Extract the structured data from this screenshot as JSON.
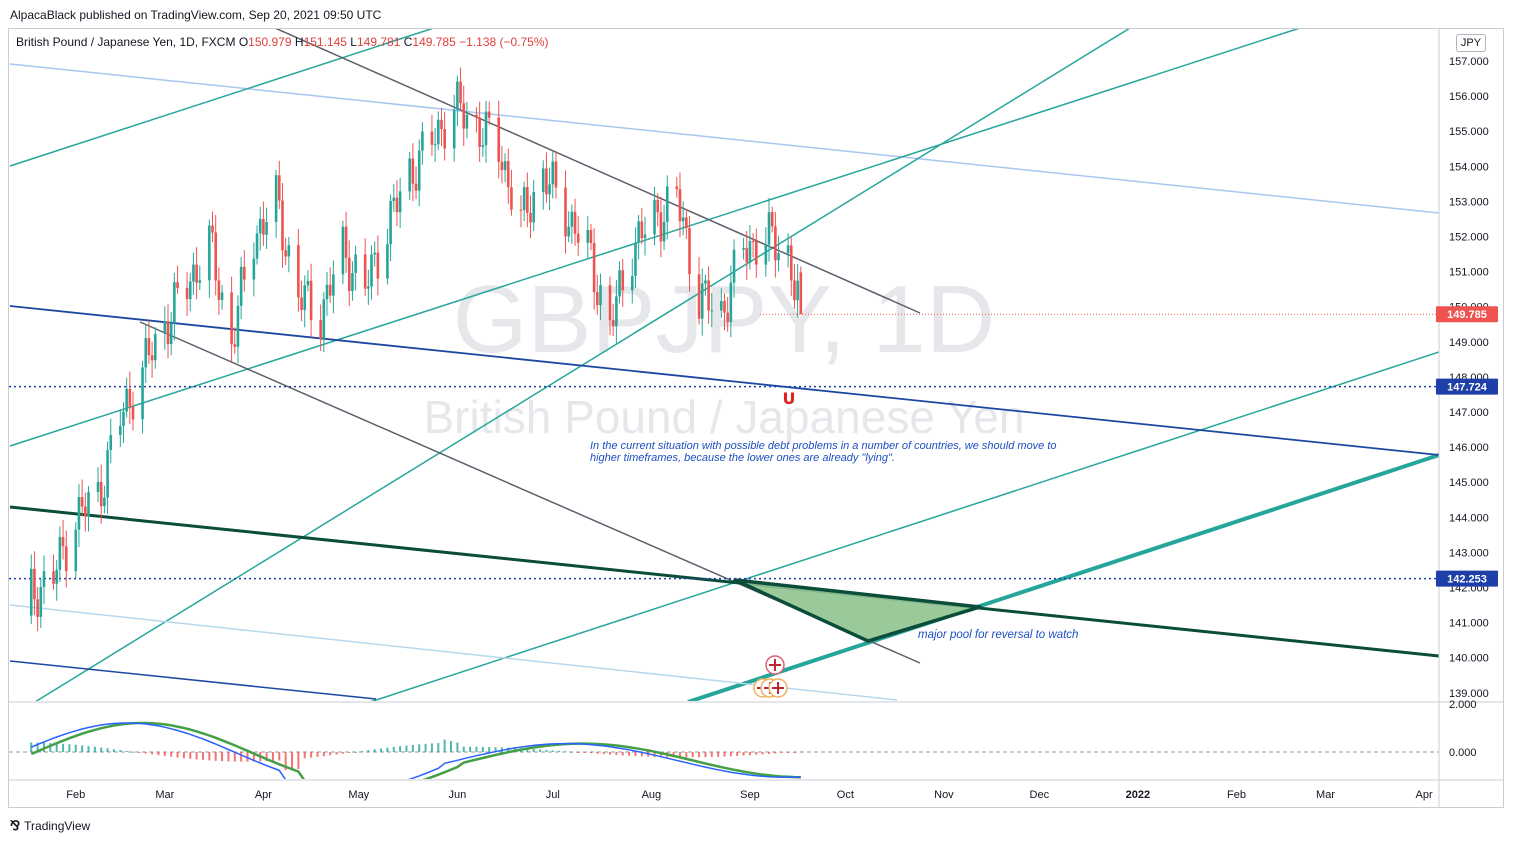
{
  "header": {
    "publisher_line": "AlpacaBlack published on TradingView.com, Sep 20, 2021 09:50 UTC"
  },
  "legend": {
    "symbol": "British Pound / Japanese Yen, 1D, FXCM",
    "open_label": "O",
    "open": "150.979",
    "high_label": "H",
    "high": "151.145",
    "low_label": "L",
    "low": "149.781",
    "close_label": "C",
    "close": "149.785",
    "change": "−1.138 (−0.75%)"
  },
  "currency_button": "JPY",
  "watermark": {
    "ticker": "GBPJPY, 1D",
    "name": "British Pound / Japanese Yen"
  },
  "annotations": {
    "debt_note": "In the current situation with possible debt problems in a number of countries, we should move to higher timeframes, because the lower ones are already \"lying\".",
    "pool_note": "major pool for reversal to watch"
  },
  "price_badges": {
    "last": "149.785",
    "level_1": "147.724",
    "level_2": "142.253"
  },
  "colors": {
    "up": "#26a69a",
    "down": "#ef5350",
    "teal_line": "#26a69a",
    "gray_line": "#5d606b",
    "light_blue_line": "#a8c6f0",
    "navy_line": "#1b47a0",
    "dark_green_line": "#0b4d3a",
    "pool_fill": "#8fc48f",
    "badge_red": "#ef5350",
    "badge_blue": "#1e3fa8",
    "macd": "#2962ff",
    "signal": "#43a047",
    "macd_red": "#b71c1c"
  },
  "footer": {
    "brand": "TradingView"
  },
  "chart_data": {
    "type": "candlestick",
    "title": "British Pound / Japanese Yen, 1D, FXCM",
    "y_axis": {
      "ticks": [
        "157.000",
        "156.000",
        "155.000",
        "154.000",
        "153.000",
        "152.000",
        "151.000",
        "150.000",
        "149.000",
        "148.000",
        "147.000",
        "146.000",
        "145.000",
        "144.000",
        "143.000",
        "142.000",
        "141.000",
        "140.000",
        "139.000"
      ],
      "range": [
        138.8,
        157.8
      ]
    },
    "x_axis": {
      "ticks": [
        "Feb",
        "Mar",
        "Apr",
        "May",
        "Jun",
        "Jul",
        "Aug",
        "Sep",
        "Oct",
        "Nov",
        "Dec",
        "2022",
        "Feb",
        "Mar",
        "Apr"
      ]
    },
    "price_path_anchors": [
      {
        "date": "2021-01-18",
        "close": 141.8
      },
      {
        "date": "2021-01-25",
        "close": 142.3
      },
      {
        "date": "2021-02-01",
        "close": 144.0
      },
      {
        "date": "2021-02-08",
        "close": 144.6
      },
      {
        "date": "2021-02-15",
        "close": 146.8
      },
      {
        "date": "2021-02-22",
        "close": 148.2
      },
      {
        "date": "2021-03-01",
        "close": 149.5
      },
      {
        "date": "2021-03-08",
        "close": 150.6
      },
      {
        "date": "2021-03-15",
        "close": 151.8
      },
      {
        "date": "2021-03-22",
        "close": 149.0
      },
      {
        "date": "2021-03-29",
        "close": 152.0
      },
      {
        "date": "2021-04-05",
        "close": 153.0
      },
      {
        "date": "2021-04-12",
        "close": 150.3
      },
      {
        "date": "2021-04-19",
        "close": 149.8
      },
      {
        "date": "2021-04-26",
        "close": 151.6
      },
      {
        "date": "2021-05-03",
        "close": 150.5
      },
      {
        "date": "2021-05-10",
        "close": 152.3
      },
      {
        "date": "2021-05-17",
        "close": 153.8
      },
      {
        "date": "2021-05-24",
        "close": 154.7
      },
      {
        "date": "2021-05-31",
        "close": 155.7
      },
      {
        "date": "2021-06-07",
        "close": 155.2
      },
      {
        "date": "2021-06-14",
        "close": 154.5
      },
      {
        "date": "2021-06-21",
        "close": 152.4
      },
      {
        "date": "2021-06-28",
        "close": 153.8
      },
      {
        "date": "2021-07-05",
        "close": 152.7
      },
      {
        "date": "2021-07-12",
        "close": 151.6
      },
      {
        "date": "2021-07-19",
        "close": 149.4
      },
      {
        "date": "2021-07-26",
        "close": 151.7
      },
      {
        "date": "2021-08-02",
        "close": 152.5
      },
      {
        "date": "2021-08-09",
        "close": 153.1
      },
      {
        "date": "2021-08-16",
        "close": 150.3
      },
      {
        "date": "2021-08-23",
        "close": 149.8
      },
      {
        "date": "2021-08-30",
        "close": 151.6
      },
      {
        "date": "2021-09-06",
        "close": 152.0
      },
      {
        "date": "2021-09-13",
        "close": 151.5
      },
      {
        "date": "2021-09-17",
        "close": 149.785
      }
    ],
    "horizontal_levels": [
      147.724,
      142.253
    ],
    "last_price": 149.785,
    "macd_pane": {
      "y_ticks": [
        "2.000",
        "0.000"
      ],
      "range": [
        -1.8,
        2.0
      ]
    }
  }
}
